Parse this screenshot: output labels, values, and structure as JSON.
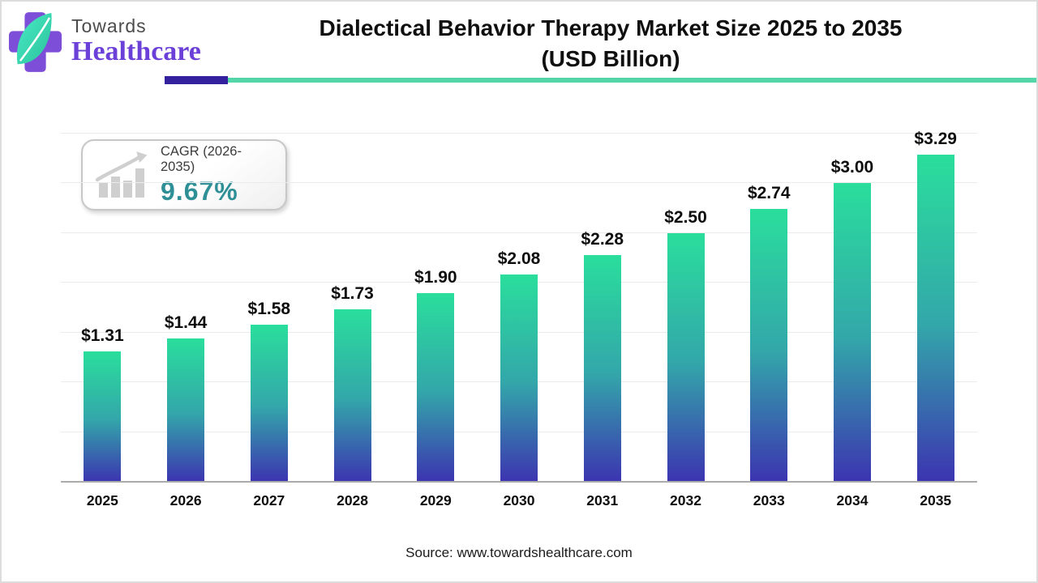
{
  "logo": {
    "word1": "Towards",
    "word2": "Healthcare",
    "word2_color": "#6B40D8",
    "cross_color": "#7D4ED7",
    "leaf_colors": [
      "#49EBC6",
      "#2BC29B"
    ]
  },
  "header": {
    "title_line1": "Dialectical Behavior Therapy Market Size 2025 to 2035",
    "title_line2": "(USD Billion)",
    "rule_purple_color": "#34219E",
    "rule_teal_color": "#54D6A8"
  },
  "cagr_badge": {
    "label": "CAGR (2026-2035)",
    "value": "9.67%",
    "value_color": "#2E8F96",
    "icon": "growth-chart-icon"
  },
  "chart_data": {
    "type": "bar",
    "title": "Dialectical Behavior Therapy Market Size 2025 to 2035 (USD Billion)",
    "categories": [
      "2025",
      "2026",
      "2027",
      "2028",
      "2029",
      "2030",
      "2031",
      "2032",
      "2033",
      "2034",
      "2035"
    ],
    "values": [
      1.31,
      1.44,
      1.58,
      1.73,
      1.9,
      2.08,
      2.28,
      2.5,
      2.74,
      3.0,
      3.29
    ],
    "labels": [
      "$1.31",
      "$1.44",
      "$1.58",
      "$1.73",
      "$1.90",
      "$2.08",
      "$2.28",
      "$2.50",
      "$2.74",
      "$3.00",
      "$3.29"
    ],
    "xlabel": "",
    "ylabel": "",
    "ylim": [
      0,
      3.5
    ],
    "grid_step": 0.5,
    "grid": true,
    "legend": false,
    "bar_gradient": [
      "#2ADE9C",
      "#33A7AA",
      "#3C34B0"
    ],
    "axis_color": "#ABABAB",
    "gridline_color": "#EBEBEB"
  },
  "footer": {
    "source": "Source: www.towardshealthcare.com"
  }
}
